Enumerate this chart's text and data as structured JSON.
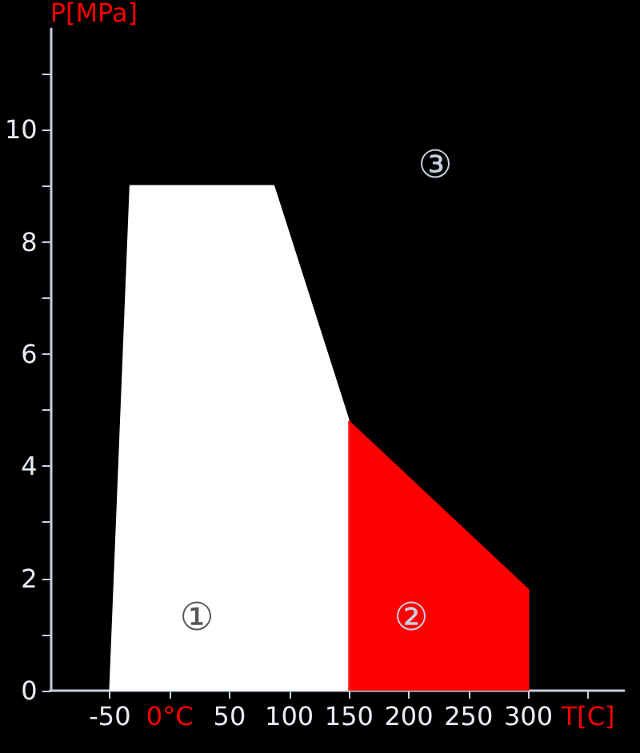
{
  "chart_data": {
    "type": "area",
    "ylabel": "P[MPa]",
    "series": [
      {
        "color": "#ffffff",
        "x": [
          -50,
          -33,
          87,
          150,
          150
        ],
        "values": [
          0,
          9,
          9,
          4.8,
          0
        ]
      },
      {
        "color": "#ff0000",
        "x": [
          150,
          150,
          300,
          300
        ],
        "values": [
          0,
          4.8,
          1.8,
          0
        ]
      }
    ],
    "xlim": [
      -100,
      380
    ],
    "xticks": [
      -50,
      {
        "value": 0,
        "label": "0°C"
      },
      50,
      100,
      150,
      200,
      250,
      300,
      {
        "value": 350,
        "label": "T[C]"
      }
    ],
    "ylim": [
      0,
      11.8
    ],
    "yticks": [
      0,
      {
        "value": 1,
        "label": null
      },
      2,
      {
        "value": 3,
        "label": null
      },
      4,
      {
        "value": 5,
        "label": null
      },
      6,
      {
        "value": 7,
        "label": null
      },
      8,
      {
        "value": 9,
        "label": null
      },
      10,
      {
        "value": 11,
        "label": null
      }
    ],
    "annotations": [
      "①",
      "②",
      "③"
    ],
    "marker": "none",
    "line_style": "solid"
  }
}
